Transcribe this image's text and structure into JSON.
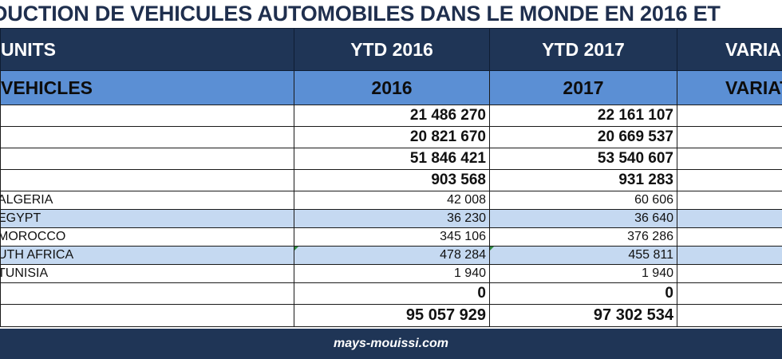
{
  "title": "DUCTION DE VEHICULES AUTOMOBILES DANS LE MONDE EN 2016 ET",
  "header": {
    "col1": "UNITS",
    "col2": "YTD 2016",
    "col3": "YTD 2017",
    "col4": "VARIA"
  },
  "subheader": {
    "col1": "VEHICLES",
    "col2": "2016",
    "col3": "2017",
    "col4": "VARIAT"
  },
  "rows": [
    {
      "label": "",
      "v2016": "21 486 270",
      "v2017": "22 161 107"
    },
    {
      "label": "",
      "v2016": "20 821 670",
      "v2017": "20 669 537"
    },
    {
      "label": "",
      "v2016": "51 846 421",
      "v2017": "53 540 607"
    },
    {
      "label": "",
      "v2016": "903 568",
      "v2017": "931 283"
    },
    {
      "label": "ALGERIA",
      "v2016": "42 008",
      "v2017": "60 606"
    },
    {
      "label": "EGYPT",
      "v2016": "36 230",
      "v2017": "36 640"
    },
    {
      "label": "MOROCCO",
      "v2016": "345 106",
      "v2017": "376 286"
    },
    {
      "label": "UTH AFRICA",
      "v2016": "478 284",
      "v2017": "455 811"
    },
    {
      "label": "TUNISIA",
      "v2016": "1 940",
      "v2017": "1 940"
    },
    {
      "label": "",
      "v2016": "0",
      "v2017": "0"
    },
    {
      "label": "",
      "v2016": "95 057 929",
      "v2017": "97 302 534"
    }
  ],
  "footer": "mays-mouissi.com"
}
